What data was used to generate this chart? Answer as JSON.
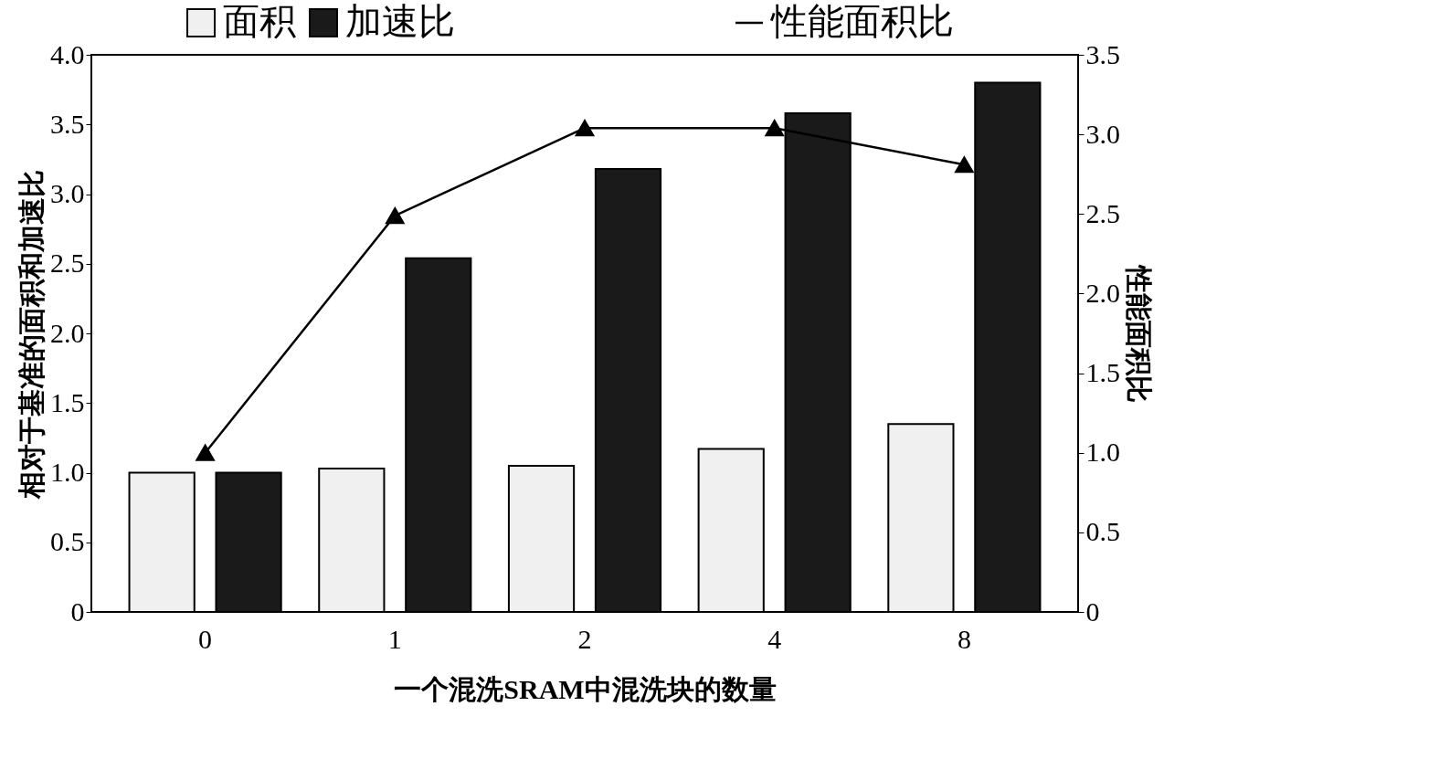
{
  "chart_data": {
    "type": "bar",
    "xlabel": "一个混洗SRAM中混洗块的数量",
    "ylabel": "相对于基准的面积和加速比",
    "y2label": "性能面积比",
    "categories": [
      "0",
      "1",
      "2",
      "4",
      "8"
    ],
    "series": [
      {
        "name": "面积",
        "color": "#f0f0f0",
        "values": [
          1.0,
          1.03,
          1.05,
          1.17,
          1.35
        ]
      },
      {
        "name": "加速比",
        "color": "#1a1a1a",
        "values": [
          1.0,
          2.54,
          3.18,
          3.58,
          3.8
        ]
      },
      {
        "name": "性能面积比",
        "color": "#000000",
        "type": "line",
        "axis": "y2",
        "marker": "triangle",
        "values": [
          1.0,
          2.49,
          3.04,
          3.04,
          2.81
        ]
      }
    ],
    "ylim": [
      0,
      4
    ],
    "yticks": [
      0,
      0.5,
      {
        "value": 1,
        "label": "1.0"
      },
      1.5,
      {
        "value": 2,
        "label": "2.0"
      },
      2.5,
      {
        "value": 3,
        "label": "3.0"
      },
      3.5,
      {
        "value": 4,
        "label": "4.0"
      }
    ],
    "y2lim": [
      0,
      3.5
    ],
    "y2ticks": [
      0,
      0.5,
      {
        "value": 1,
        "label": "1.0"
      },
      1.5,
      {
        "value": 2,
        "label": "2.0"
      },
      2.5,
      {
        "value": 3,
        "label": "3.0"
      },
      3.5
    ],
    "grid": false,
    "legend": "top"
  }
}
